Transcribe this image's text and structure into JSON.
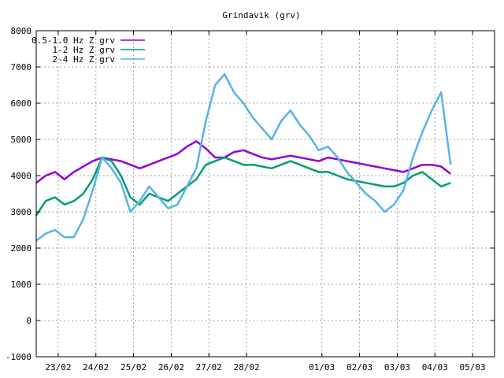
{
  "chart_data": {
    "type": "line",
    "title": "Grindavik (grv)",
    "xlabel": "",
    "ylabel": "",
    "ylim": [
      -1000,
      8000
    ],
    "yticks": [
      -1000,
      0,
      1000,
      2000,
      3000,
      4000,
      5000,
      6000,
      7000,
      8000
    ],
    "xlim": [
      "2024-02-22T10:00",
      "2024-03-05T14:00"
    ],
    "xticks": [
      {
        "date": "2024-02-23",
        "label": "23/02"
      },
      {
        "date": "2024-02-24",
        "label": "24/02"
      },
      {
        "date": "2024-02-25",
        "label": "25/02"
      },
      {
        "date": "2024-02-26",
        "label": "26/02"
      },
      {
        "date": "2024-02-27",
        "label": "27/02"
      },
      {
        "date": "2024-02-28",
        "label": "28/02"
      },
      {
        "date": "2024-03-01",
        "label": "01/03"
      },
      {
        "date": "2024-03-02",
        "label": "02/03"
      },
      {
        "date": "2024-03-03",
        "label": "03/03"
      },
      {
        "date": "2024-03-04",
        "label": "04/03"
      },
      {
        "date": "2024-03-05",
        "label": "05/03"
      }
    ],
    "grid": true,
    "legend_position": "top-left",
    "series": [
      {
        "name": "0.5-1.0 Hz Z grv",
        "color": "#9400d3",
        "x": [
          "2024-02-22T10:00",
          "2024-02-22T16:00",
          "2024-02-22T22:00",
          "2024-02-23T04:00",
          "2024-02-23T10:00",
          "2024-02-23T16:00",
          "2024-02-23T22:00",
          "2024-02-24T04:00",
          "2024-02-24T10:00",
          "2024-02-24T16:00",
          "2024-02-24T22:00",
          "2024-02-25T04:00",
          "2024-02-25T10:00",
          "2024-02-25T16:00",
          "2024-02-25T22:00",
          "2024-02-26T04:00",
          "2024-02-26T10:00",
          "2024-02-26T16:00",
          "2024-02-26T22:00",
          "2024-02-27T04:00",
          "2024-02-27T10:00",
          "2024-02-27T16:00",
          "2024-02-27T22:00",
          "2024-02-28T04:00",
          "2024-02-28T10:00",
          "2024-02-28T16:00",
          "2024-02-28T22:00",
          "2024-02-29T04:00",
          "2024-02-29T10:00",
          "2024-02-29T16:00",
          "2024-02-29T22:00",
          "2024-03-01T04:00",
          "2024-03-01T10:00",
          "2024-03-01T16:00",
          "2024-03-01T22:00",
          "2024-03-02T04:00",
          "2024-03-02T10:00",
          "2024-03-02T16:00",
          "2024-03-02T22:00",
          "2024-03-03T04:00",
          "2024-03-03T10:00",
          "2024-03-03T16:00",
          "2024-03-03T22:00",
          "2024-03-04T04:00",
          "2024-03-04T10:00"
        ],
        "y": [
          3800,
          4000,
          4100,
          3900,
          4100,
          4250,
          4400,
          4500,
          4450,
          4400,
          4300,
          4200,
          4300,
          4400,
          4500,
          4600,
          4800,
          4950,
          4750,
          4500,
          4500,
          4650,
          4700,
          4600,
          4500,
          4450,
          4500,
          4550,
          4500,
          4450,
          4400,
          4500,
          4450,
          4400,
          4350,
          4300,
          4250,
          4200,
          4150,
          4100,
          4200,
          4300,
          4300,
          4250,
          4050
        ]
      },
      {
        "name": "1-2 Hz Z grv",
        "color": "#009e73",
        "x": [
          "2024-02-22T10:00",
          "2024-02-22T16:00",
          "2024-02-22T22:00",
          "2024-02-23T04:00",
          "2024-02-23T10:00",
          "2024-02-23T16:00",
          "2024-02-23T22:00",
          "2024-02-24T04:00",
          "2024-02-24T10:00",
          "2024-02-24T16:00",
          "2024-02-24T22:00",
          "2024-02-25T04:00",
          "2024-02-25T10:00",
          "2024-02-25T16:00",
          "2024-02-25T22:00",
          "2024-02-26T04:00",
          "2024-02-26T10:00",
          "2024-02-26T16:00",
          "2024-02-26T22:00",
          "2024-02-27T04:00",
          "2024-02-27T10:00",
          "2024-02-27T16:00",
          "2024-02-27T22:00",
          "2024-02-28T04:00",
          "2024-02-28T10:00",
          "2024-02-28T16:00",
          "2024-02-28T22:00",
          "2024-02-29T04:00",
          "2024-02-29T10:00",
          "2024-02-29T16:00",
          "2024-02-29T22:00",
          "2024-03-01T04:00",
          "2024-03-01T10:00",
          "2024-03-01T16:00",
          "2024-03-01T22:00",
          "2024-03-02T04:00",
          "2024-03-02T10:00",
          "2024-03-02T16:00",
          "2024-03-02T22:00",
          "2024-03-03T04:00",
          "2024-03-03T10:00",
          "2024-03-03T16:00",
          "2024-03-03T22:00",
          "2024-03-04T04:00",
          "2024-03-04T10:00"
        ],
        "y": [
          2900,
          3300,
          3400,
          3200,
          3300,
          3500,
          3900,
          4500,
          4400,
          4000,
          3400,
          3200,
          3500,
          3400,
          3300,
          3500,
          3700,
          3900,
          4300,
          4400,
          4500,
          4400,
          4300,
          4300,
          4250,
          4200,
          4300,
          4400,
          4300,
          4200,
          4100,
          4100,
          4000,
          3900,
          3850,
          3800,
          3750,
          3700,
          3700,
          3800,
          4000,
          4100,
          3900,
          3700,
          3800
        ]
      },
      {
        "name": "2-4 Hz Z grv",
        "color": "#56b4e9",
        "x": [
          "2024-02-22T10:00",
          "2024-02-22T16:00",
          "2024-02-22T22:00",
          "2024-02-23T04:00",
          "2024-02-23T10:00",
          "2024-02-23T16:00",
          "2024-02-23T22:00",
          "2024-02-24T04:00",
          "2024-02-24T10:00",
          "2024-02-24T16:00",
          "2024-02-24T22:00",
          "2024-02-25T04:00",
          "2024-02-25T10:00",
          "2024-02-25T16:00",
          "2024-02-25T22:00",
          "2024-02-26T04:00",
          "2024-02-26T10:00",
          "2024-02-26T16:00",
          "2024-02-26T22:00",
          "2024-02-27T04:00",
          "2024-02-27T10:00",
          "2024-02-27T16:00",
          "2024-02-27T22:00",
          "2024-02-28T04:00",
          "2024-02-28T10:00",
          "2024-02-28T16:00",
          "2024-02-28T22:00",
          "2024-02-29T04:00",
          "2024-02-29T10:00",
          "2024-02-29T16:00",
          "2024-02-29T22:00",
          "2024-03-01T04:00",
          "2024-03-01T10:00",
          "2024-03-01T16:00",
          "2024-03-01T22:00",
          "2024-03-02T04:00",
          "2024-03-02T10:00",
          "2024-03-02T16:00",
          "2024-03-02T22:00",
          "2024-03-03T04:00",
          "2024-03-03T10:00",
          "2024-03-03T16:00",
          "2024-03-03T22:00",
          "2024-03-04T04:00",
          "2024-03-04T10:00"
        ],
        "y": [
          2200,
          2400,
          2500,
          2300,
          2300,
          2800,
          3600,
          4500,
          4200,
          3800,
          3000,
          3300,
          3700,
          3400,
          3100,
          3200,
          3700,
          4200,
          5500,
          6500,
          6800,
          6300,
          6000,
          5600,
          5300,
          5000,
          5500,
          5800,
          5400,
          5100,
          4700,
          4800,
          4500,
          4100,
          3800,
          3500,
          3300,
          3000,
          3200,
          3600,
          4500,
          5200,
          5800,
          6300,
          4300
        ]
      }
    ]
  }
}
